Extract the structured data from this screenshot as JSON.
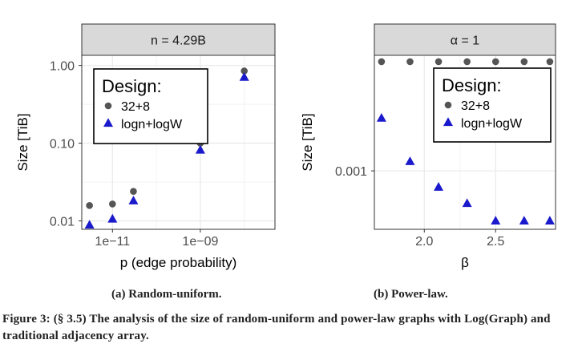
{
  "figure": {
    "subcaption_a": "(a) Random-uniform.",
    "subcaption_b": "(b) Power-law.",
    "caption": "Figure 3: (§ 3.5) The analysis of the size of random-uniform and power-law graphs with Log(Graph) and traditional adjacency array."
  },
  "colors": {
    "series_32_8": "#555555",
    "series_logn": "#1a1acc",
    "strip_bg": "#d9d9d9",
    "grid": "#ebebeb"
  },
  "chart_data": [
    {
      "type": "scatter",
      "facet_label": "n = 4.29B",
      "xlabel": "p (edge probability)",
      "ylabel": "Size [TiB]",
      "x_scale": "log",
      "y_scale": "log",
      "xlim": [
        2e-12,
        5e-08
      ],
      "ylim": [
        0.0078,
        1.35
      ],
      "x_ticks": [
        {
          "value": 1e-11,
          "label": "1e−11"
        },
        {
          "value": 1e-09,
          "label": "1e−09"
        }
      ],
      "y_ticks": [
        {
          "value": 0.01,
          "label": "0.01"
        },
        {
          "value": 0.1,
          "label": "0.10"
        },
        {
          "value": 1.0,
          "label": "1.00"
        }
      ],
      "legend_title": "Design:",
      "legend_position": "top-left",
      "grid": true,
      "series": [
        {
          "name": "32+8",
          "marker": "circle",
          "x": [
            3e-12,
            1e-11,
            3e-11,
            1e-09,
            1e-08
          ],
          "y": [
            0.0158,
            0.0165,
            0.024,
            0.1,
            0.85
          ]
        },
        {
          "name": "logn+logW",
          "marker": "triangle",
          "x": [
            3e-12,
            1e-11,
            3e-11,
            1e-09,
            1e-08
          ],
          "y": [
            0.0088,
            0.0105,
            0.018,
            0.081,
            0.7
          ]
        }
      ]
    },
    {
      "type": "scatter",
      "facet_label": "α = 1",
      "xlabel": "β",
      "ylabel": "Size [TiB]",
      "x_scale": "linear",
      "y_scale": "log",
      "xlim": [
        1.65,
        2.92
      ],
      "ylim": [
        0.000345,
        0.0082
      ],
      "x_ticks": [
        {
          "value": 2.0,
          "label": "2.0"
        },
        {
          "value": 2.5,
          "label": "2.5"
        }
      ],
      "y_ticks": [
        {
          "value": 0.001,
          "label": "0.001"
        }
      ],
      "legend_title": "Design:",
      "legend_position": "top-right",
      "grid": true,
      "series": [
        {
          "name": "32+8",
          "marker": "circle",
          "x": [
            1.7,
            1.9,
            2.1,
            2.3,
            2.5,
            2.7,
            2.88
          ],
          "y": [
            0.0073,
            0.0073,
            0.0073,
            0.0073,
            0.0073,
            0.0073,
            0.0073
          ]
        },
        {
          "name": "logn+logW",
          "marker": "triangle",
          "x": [
            1.7,
            1.9,
            2.1,
            2.3,
            2.5,
            2.7,
            2.88
          ],
          "y": [
            0.0026,
            0.00118,
            0.00074,
            0.00055,
            0.0004,
            0.0004,
            0.0004
          ]
        }
      ]
    }
  ]
}
